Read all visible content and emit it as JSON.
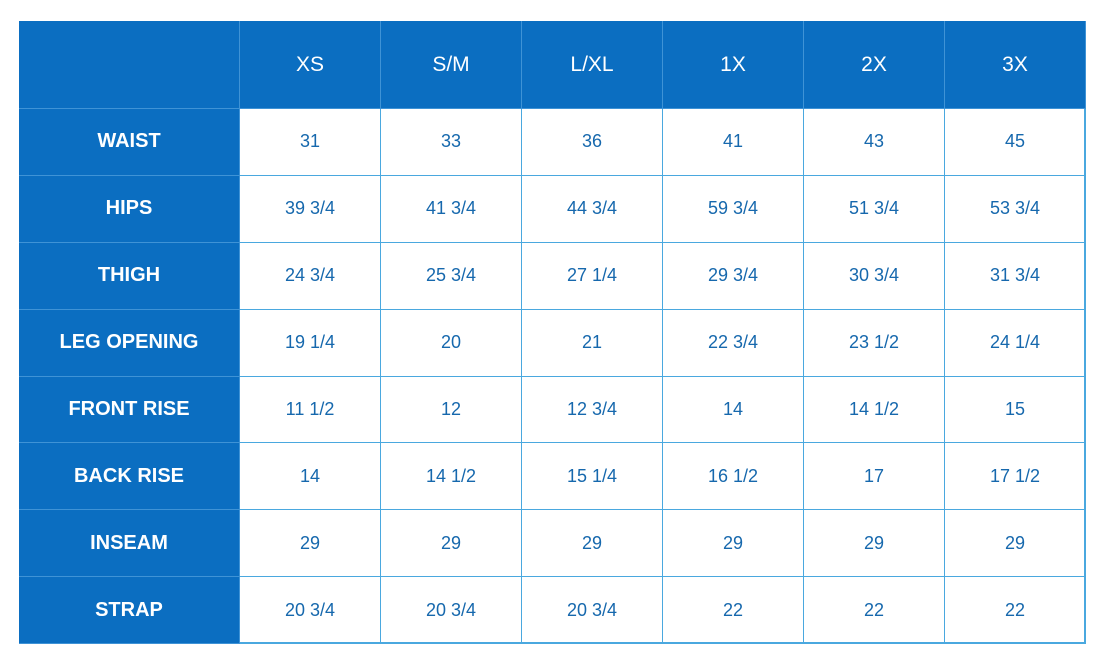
{
  "table": {
    "columns": [
      "XS",
      "S/M",
      "L/XL",
      "1X",
      "2X",
      "3X"
    ],
    "rows": [
      {
        "label": "WAIST",
        "values": [
          "31",
          "33",
          "36",
          "41",
          "43",
          "45"
        ]
      },
      {
        "label": "HIPS",
        "values": [
          "39 3/4",
          "41 3/4",
          "44 3/4",
          "59 3/4",
          "51 3/4",
          "53 3/4"
        ]
      },
      {
        "label": "THIGH",
        "values": [
          "24 3/4",
          "25 3/4",
          "27 1/4",
          "29 3/4",
          "30 3/4",
          "31 3/4"
        ]
      },
      {
        "label": "LEG OPENING",
        "values": [
          "19 1/4",
          "20",
          "21",
          "22 3/4",
          "23 1/2",
          "24 1/4"
        ]
      },
      {
        "label": "FRONT RISE",
        "values": [
          "11 1/2",
          "12",
          "12 3/4",
          "14",
          "14 1/2",
          "15"
        ]
      },
      {
        "label": "BACK RISE",
        "values": [
          "14",
          "14 1/2",
          "15 1/4",
          "16 1/2",
          "17",
          "17 1/2"
        ]
      },
      {
        "label": "INSEAM",
        "values": [
          "29",
          "29",
          "29",
          "29",
          "29",
          "29"
        ]
      },
      {
        "label": "STRAP",
        "values": [
          "20 3/4",
          "20 3/4",
          "20 3/4",
          "22",
          "22",
          "22"
        ]
      }
    ]
  }
}
